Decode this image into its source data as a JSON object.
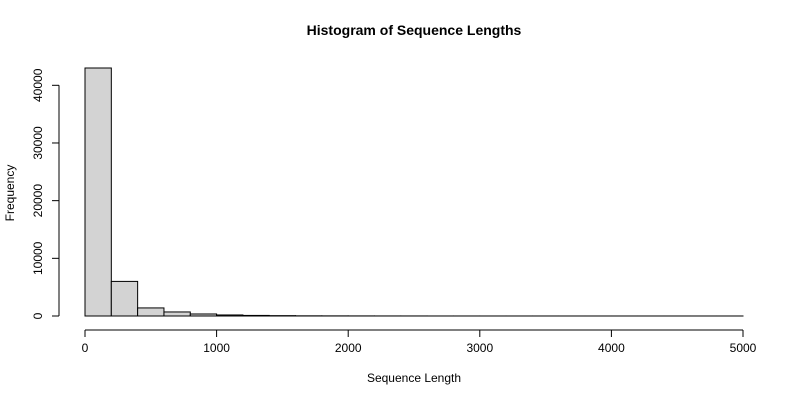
{
  "chart_data": {
    "type": "bar",
    "title": "Histogram of Sequence Lengths",
    "xlabel": "Sequence Length",
    "ylabel": "Frequency",
    "bin_width": 200,
    "bins": [
      {
        "start": 0,
        "end": 200,
        "count": 43000
      },
      {
        "start": 200,
        "end": 400,
        "count": 6000
      },
      {
        "start": 400,
        "end": 600,
        "count": 1400
      },
      {
        "start": 600,
        "end": 800,
        "count": 700
      },
      {
        "start": 800,
        "end": 1000,
        "count": 350
      },
      {
        "start": 1000,
        "end": 1200,
        "count": 180
      },
      {
        "start": 1200,
        "end": 1400,
        "count": 100
      },
      {
        "start": 1400,
        "end": 1600,
        "count": 60
      },
      {
        "start": 1600,
        "end": 1800,
        "count": 30
      },
      {
        "start": 1800,
        "end": 2000,
        "count": 20
      },
      {
        "start": 2000,
        "end": 2200,
        "count": 15
      },
      {
        "start": 2200,
        "end": 2400,
        "count": 10
      },
      {
        "start": 2400,
        "end": 2600,
        "count": 8
      },
      {
        "start": 2600,
        "end": 2800,
        "count": 6
      },
      {
        "start": 2800,
        "end": 3000,
        "count": 5
      },
      {
        "start": 3000,
        "end": 3200,
        "count": 4
      },
      {
        "start": 3200,
        "end": 3400,
        "count": 3
      },
      {
        "start": 3400,
        "end": 3600,
        "count": 3
      },
      {
        "start": 3600,
        "end": 3800,
        "count": 2
      },
      {
        "start": 3800,
        "end": 4000,
        "count": 2
      },
      {
        "start": 4000,
        "end": 4200,
        "count": 2
      },
      {
        "start": 4200,
        "end": 4400,
        "count": 1
      },
      {
        "start": 4400,
        "end": 4600,
        "count": 1
      },
      {
        "start": 4600,
        "end": 4800,
        "count": 1
      },
      {
        "start": 4800,
        "end": 5000,
        "count": 1
      }
    ],
    "xlim": [
      0,
      5000
    ],
    "ylim": [
      0,
      43000
    ],
    "x_ticks": [
      0,
      1000,
      2000,
      3000,
      4000,
      5000
    ],
    "y_ticks": [
      0,
      10000,
      20000,
      30000,
      40000
    ],
    "grid": false,
    "colors": {
      "bar_fill": "#d3d3d3",
      "bar_stroke": "#000000"
    }
  }
}
